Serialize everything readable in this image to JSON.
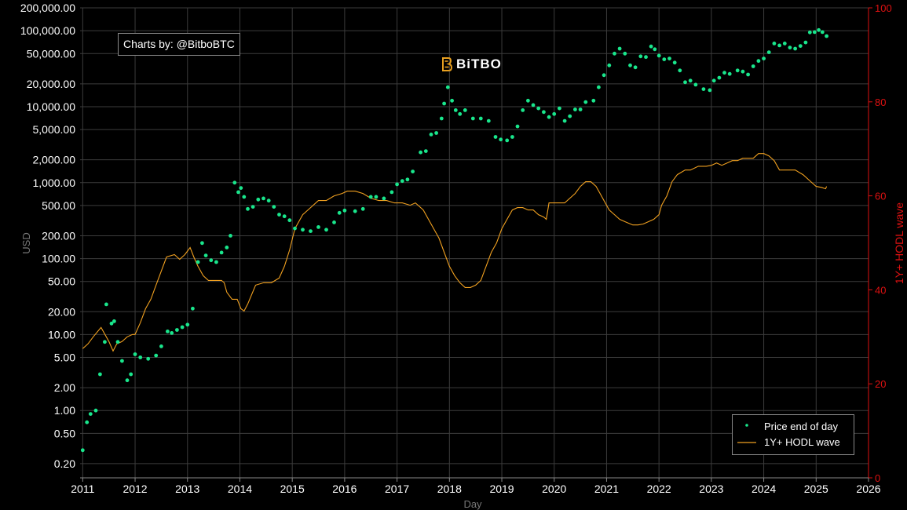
{
  "watermark": "Charts by: @BitboBTC",
  "logo": {
    "text": "BiTBO"
  },
  "colors": {
    "price": "#19e68c",
    "hodl": "#f0a020",
    "grid": "#3c3c3c",
    "right_axis": "#dd1111"
  },
  "chart_data": {
    "type": "scatter",
    "xlabel": "Day",
    "ylabel": "USD",
    "y2label": "1Y+ HODL wave",
    "xlim": [
      2010.95,
      2026
    ],
    "ylim": [
      0.13,
      200000
    ],
    "yscale": "log",
    "y2lim": [
      0,
      100
    ],
    "grid": true,
    "legend_position": "bottom-right",
    "x_ticks": [
      "2011",
      "2012",
      "2013",
      "2014",
      "2015",
      "2016",
      "2017",
      "2018",
      "2019",
      "2020",
      "2021",
      "2022",
      "2023",
      "2024",
      "2025",
      "2026"
    ],
    "y_ticks": [
      {
        "value": 200000,
        "label": "200,000.00"
      },
      {
        "value": 100000,
        "label": "100,000.00"
      },
      {
        "value": 50000,
        "label": "50,000.00"
      },
      {
        "value": 20000,
        "label": "20,000.00"
      },
      {
        "value": 10000,
        "label": "10,000.00"
      },
      {
        "value": 5000,
        "label": "5,000.00"
      },
      {
        "value": 2000,
        "label": "2,000.00"
      },
      {
        "value": 1000,
        "label": "1,000.00"
      },
      {
        "value": 500,
        "label": "500.00"
      },
      {
        "value": 200,
        "label": "200.00"
      },
      {
        "value": 100,
        "label": "100.00"
      },
      {
        "value": 50,
        "label": "50.00"
      },
      {
        "value": 20,
        "label": "20.00"
      },
      {
        "value": 10,
        "label": "10.00"
      },
      {
        "value": 5,
        "label": "5.00"
      },
      {
        "value": 2,
        "label": "2.00"
      },
      {
        "value": 1,
        "label": "1.00"
      },
      {
        "value": 0.5,
        "label": "0.50"
      },
      {
        "value": 0.2,
        "label": "0.20"
      }
    ],
    "y2_ticks": [
      0,
      20,
      40,
      60,
      80,
      100
    ],
    "series": [
      {
        "name": "Price end of day",
        "axis": "left",
        "style": "points",
        "points": [
          [
            2011.0,
            0.3
          ],
          [
            2011.08,
            0.7
          ],
          [
            2011.15,
            0.9
          ],
          [
            2011.25,
            1.0
          ],
          [
            2011.33,
            3.0
          ],
          [
            2011.42,
            8.0
          ],
          [
            2011.45,
            25.0
          ],
          [
            2011.55,
            14.0
          ],
          [
            2011.6,
            15.0
          ],
          [
            2011.67,
            8.0
          ],
          [
            2011.75,
            4.5
          ],
          [
            2011.85,
            2.5
          ],
          [
            2011.92,
            3.0
          ],
          [
            2012.0,
            5.5
          ],
          [
            2012.1,
            5.0
          ],
          [
            2012.25,
            4.8
          ],
          [
            2012.4,
            5.3
          ],
          [
            2012.5,
            7.0
          ],
          [
            2012.62,
            11.0
          ],
          [
            2012.7,
            10.5
          ],
          [
            2012.8,
            11.5
          ],
          [
            2012.9,
            12.5
          ],
          [
            2013.0,
            13.5
          ],
          [
            2013.1,
            22.0
          ],
          [
            2013.2,
            90.0
          ],
          [
            2013.28,
            160.0
          ],
          [
            2013.35,
            110.0
          ],
          [
            2013.45,
            95.0
          ],
          [
            2013.55,
            90.0
          ],
          [
            2013.65,
            120.0
          ],
          [
            2013.75,
            140.0
          ],
          [
            2013.82,
            200.0
          ],
          [
            2013.9,
            1000.0
          ],
          [
            2013.97,
            750.0
          ],
          [
            2014.02,
            850.0
          ],
          [
            2014.08,
            650.0
          ],
          [
            2014.15,
            450.0
          ],
          [
            2014.25,
            480.0
          ],
          [
            2014.35,
            600.0
          ],
          [
            2014.45,
            620.0
          ],
          [
            2014.55,
            580.0
          ],
          [
            2014.65,
            480.0
          ],
          [
            2014.75,
            380.0
          ],
          [
            2014.85,
            360.0
          ],
          [
            2014.95,
            320.0
          ],
          [
            2015.05,
            250.0
          ],
          [
            2015.2,
            240.0
          ],
          [
            2015.35,
            230.0
          ],
          [
            2015.5,
            260.0
          ],
          [
            2015.65,
            240.0
          ],
          [
            2015.8,
            300.0
          ],
          [
            2015.9,
            400.0
          ],
          [
            2016.0,
            430.0
          ],
          [
            2016.2,
            420.0
          ],
          [
            2016.35,
            450.0
          ],
          [
            2016.5,
            650.0
          ],
          [
            2016.6,
            650.0
          ],
          [
            2016.75,
            620.0
          ],
          [
            2016.9,
            750.0
          ],
          [
            2017.0,
            950.0
          ],
          [
            2017.1,
            1050.0
          ],
          [
            2017.2,
            1100.0
          ],
          [
            2017.3,
            1400.0
          ],
          [
            2017.45,
            2500.0
          ],
          [
            2017.55,
            2600.0
          ],
          [
            2017.65,
            4300.0
          ],
          [
            2017.75,
            4500.0
          ],
          [
            2017.85,
            7000.0
          ],
          [
            2017.9,
            11000.0
          ],
          [
            2017.97,
            18000.0
          ],
          [
            2018.05,
            12000.0
          ],
          [
            2018.12,
            9000.0
          ],
          [
            2018.2,
            8000.0
          ],
          [
            2018.3,
            9000.0
          ],
          [
            2018.45,
            7000.0
          ],
          [
            2018.6,
            7000.0
          ],
          [
            2018.75,
            6500.0
          ],
          [
            2018.88,
            4000.0
          ],
          [
            2018.98,
            3700.0
          ],
          [
            2019.1,
            3600.0
          ],
          [
            2019.2,
            4000.0
          ],
          [
            2019.3,
            5500.0
          ],
          [
            2019.4,
            9000.0
          ],
          [
            2019.5,
            12000.0
          ],
          [
            2019.6,
            10500.0
          ],
          [
            2019.7,
            9500.0
          ],
          [
            2019.8,
            8500.0
          ],
          [
            2019.9,
            7300.0
          ],
          [
            2020.0,
            8000.0
          ],
          [
            2020.1,
            9500.0
          ],
          [
            2020.2,
            6500.0
          ],
          [
            2020.3,
            7500.0
          ],
          [
            2020.4,
            9200.0
          ],
          [
            2020.5,
            9200.0
          ],
          [
            2020.6,
            11500.0
          ],
          [
            2020.75,
            12000.0
          ],
          [
            2020.85,
            18000.0
          ],
          [
            2020.95,
            26000.0
          ],
          [
            2021.05,
            35000.0
          ],
          [
            2021.15,
            50000.0
          ],
          [
            2021.25,
            58000.0
          ],
          [
            2021.35,
            50000.0
          ],
          [
            2021.45,
            35000.0
          ],
          [
            2021.55,
            33000.0
          ],
          [
            2021.65,
            46000.0
          ],
          [
            2021.75,
            45000.0
          ],
          [
            2021.85,
            62000.0
          ],
          [
            2021.92,
            57000.0
          ],
          [
            2022.0,
            47000.0
          ],
          [
            2022.1,
            42000.0
          ],
          [
            2022.2,
            43000.0
          ],
          [
            2022.3,
            38000.0
          ],
          [
            2022.4,
            30000.0
          ],
          [
            2022.5,
            21000.0
          ],
          [
            2022.6,
            22000.0
          ],
          [
            2022.7,
            19500.0
          ],
          [
            2022.85,
            17000.0
          ],
          [
            2022.97,
            16500.0
          ],
          [
            2023.05,
            22000.0
          ],
          [
            2023.15,
            24000.0
          ],
          [
            2023.25,
            28000.0
          ],
          [
            2023.35,
            27000.0
          ],
          [
            2023.5,
            30000.0
          ],
          [
            2023.6,
            29000.0
          ],
          [
            2023.7,
            26500.0
          ],
          [
            2023.8,
            34000.0
          ],
          [
            2023.9,
            40000.0
          ],
          [
            2024.0,
            43000.0
          ],
          [
            2024.1,
            52000.0
          ],
          [
            2024.2,
            68000.0
          ],
          [
            2024.3,
            64000.0
          ],
          [
            2024.4,
            68000.0
          ],
          [
            2024.5,
            60000.0
          ],
          [
            2024.6,
            58000.0
          ],
          [
            2024.7,
            63000.0
          ],
          [
            2024.8,
            70000.0
          ],
          [
            2024.88,
            95000.0
          ],
          [
            2024.97,
            96000.0
          ],
          [
            2025.05,
            102000.0
          ],
          [
            2025.12,
            96000.0
          ],
          [
            2025.2,
            85000.0
          ]
        ]
      },
      {
        "name": "1Y+ HODL wave",
        "axis": "right",
        "style": "line",
        "points": [
          [
            2011.0,
            27.5
          ],
          [
            2011.1,
            28.5
          ],
          [
            2011.2,
            30.0
          ],
          [
            2011.35,
            32.0
          ],
          [
            2011.5,
            29.0
          ],
          [
            2011.58,
            27.0
          ],
          [
            2011.65,
            28.5
          ],
          [
            2011.75,
            29.0
          ],
          [
            2011.85,
            30.0
          ],
          [
            2011.95,
            30.5
          ],
          [
            2012.0,
            30.5
          ],
          [
            2012.1,
            33.0
          ],
          [
            2012.2,
            36.0
          ],
          [
            2012.3,
            38.0
          ],
          [
            2012.4,
            41.0
          ],
          [
            2012.5,
            44.0
          ],
          [
            2012.6,
            47.0
          ],
          [
            2012.75,
            47.5
          ],
          [
            2012.85,
            46.5
          ],
          [
            2012.95,
            47.5
          ],
          [
            2013.05,
            49.0
          ],
          [
            2013.12,
            47.0
          ],
          [
            2013.2,
            45.0
          ],
          [
            2013.3,
            43.0
          ],
          [
            2013.4,
            42.0
          ],
          [
            2013.55,
            42.0
          ],
          [
            2013.65,
            42.0
          ],
          [
            2013.7,
            41.5
          ],
          [
            2013.75,
            39.5
          ],
          [
            2013.85,
            38.0
          ],
          [
            2013.95,
            38.0
          ],
          [
            2014.02,
            36.0
          ],
          [
            2014.08,
            35.5
          ],
          [
            2014.15,
            37.0
          ],
          [
            2014.3,
            41.0
          ],
          [
            2014.45,
            41.5
          ],
          [
            2014.6,
            41.5
          ],
          [
            2014.75,
            42.5
          ],
          [
            2014.85,
            45.0
          ],
          [
            2014.95,
            48.5
          ],
          [
            2015.05,
            53.0
          ],
          [
            2015.2,
            56.0
          ],
          [
            2015.35,
            57.5
          ],
          [
            2015.5,
            59.0
          ],
          [
            2015.65,
            59.0
          ],
          [
            2015.8,
            60.0
          ],
          [
            2015.95,
            60.5
          ],
          [
            2016.05,
            61.0
          ],
          [
            2016.2,
            61.0
          ],
          [
            2016.35,
            60.5
          ],
          [
            2016.5,
            59.5
          ],
          [
            2016.65,
            59.0
          ],
          [
            2016.8,
            59.0
          ],
          [
            2016.95,
            58.5
          ],
          [
            2017.1,
            58.5
          ],
          [
            2017.25,
            58.0
          ],
          [
            2017.35,
            58.5
          ],
          [
            2017.5,
            57.0
          ],
          [
            2017.6,
            55.0
          ],
          [
            2017.7,
            53.0
          ],
          [
            2017.8,
            51.0
          ],
          [
            2017.9,
            48.0
          ],
          [
            2018.0,
            45.0
          ],
          [
            2018.1,
            43.0
          ],
          [
            2018.2,
            41.5
          ],
          [
            2018.3,
            40.5
          ],
          [
            2018.4,
            40.5
          ],
          [
            2018.5,
            41.0
          ],
          [
            2018.6,
            42.0
          ],
          [
            2018.7,
            45.0
          ],
          [
            2018.8,
            48.0
          ],
          [
            2018.9,
            50.0
          ],
          [
            2019.0,
            53.0
          ],
          [
            2019.1,
            55.0
          ],
          [
            2019.2,
            57.0
          ],
          [
            2019.3,
            57.5
          ],
          [
            2019.4,
            57.5
          ],
          [
            2019.5,
            57.0
          ],
          [
            2019.6,
            57.0
          ],
          [
            2019.7,
            56.0
          ],
          [
            2019.8,
            55.5
          ],
          [
            2019.85,
            55.0
          ],
          [
            2019.9,
            58.5
          ],
          [
            2020.0,
            58.5
          ],
          [
            2020.1,
            58.5
          ],
          [
            2020.2,
            58.5
          ],
          [
            2020.3,
            59.5
          ],
          [
            2020.4,
            60.5
          ],
          [
            2020.5,
            62.0
          ],
          [
            2020.6,
            63.0
          ],
          [
            2020.7,
            63.0
          ],
          [
            2020.8,
            62.0
          ],
          [
            2020.9,
            60.0
          ],
          [
            2020.95,
            59.0
          ],
          [
            2021.05,
            57.0
          ],
          [
            2021.15,
            56.0
          ],
          [
            2021.25,
            55.0
          ],
          [
            2021.35,
            54.5
          ],
          [
            2021.5,
            53.8
          ],
          [
            2021.6,
            53.8
          ],
          [
            2021.7,
            54.0
          ],
          [
            2021.8,
            54.5
          ],
          [
            2021.9,
            55.0
          ],
          [
            2022.0,
            56.0
          ],
          [
            2022.05,
            58.0
          ],
          [
            2022.15,
            60.0
          ],
          [
            2022.25,
            63.0
          ],
          [
            2022.35,
            64.5
          ],
          [
            2022.5,
            65.5
          ],
          [
            2022.6,
            65.5
          ],
          [
            2022.75,
            66.3
          ],
          [
            2022.9,
            66.3
          ],
          [
            2023.0,
            66.5
          ],
          [
            2023.1,
            67.0
          ],
          [
            2023.2,
            66.5
          ],
          [
            2023.3,
            67.0
          ],
          [
            2023.4,
            67.5
          ],
          [
            2023.5,
            67.5
          ],
          [
            2023.6,
            68.0
          ],
          [
            2023.7,
            68.0
          ],
          [
            2023.8,
            68.0
          ],
          [
            2023.9,
            69.0
          ],
          [
            2024.0,
            69.0
          ],
          [
            2024.1,
            68.5
          ],
          [
            2024.2,
            67.5
          ],
          [
            2024.3,
            65.5
          ],
          [
            2024.45,
            65.5
          ],
          [
            2024.6,
            65.5
          ],
          [
            2024.75,
            64.5
          ],
          [
            2024.9,
            63.0
          ],
          [
            2025.0,
            62.0
          ],
          [
            2025.1,
            61.8
          ],
          [
            2025.18,
            61.5
          ],
          [
            2025.2,
            62.0
          ]
        ]
      }
    ]
  }
}
